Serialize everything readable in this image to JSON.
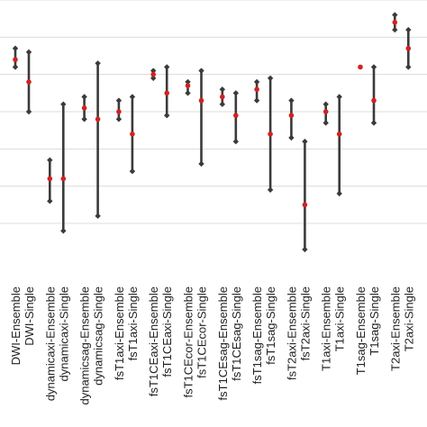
{
  "chart_data": {
    "type": "errorbar",
    "categories": [
      "DWI-Ensemble",
      "DWI-Single",
      "dynamicaxi-Ensemble",
      "dynamicaxi-Single",
      "dynamicsag-Ensemble",
      "dynamicsag-Single",
      "fsT1axi-Ensemble",
      "fsT1axi-Single",
      "fsT1CEaxi-Ensemble",
      "fsT1CEaxi-Single",
      "fsT1CEcor-Ensemble",
      "fsT1CEcor-Single",
      "fsT1CEsag-Ensemble",
      "fsT1CEsag-Single",
      "fsT1sag-Ensemble",
      "fsT1sag-Single",
      "fsT2axi-Ensemble",
      "fsT2axi-Single",
      "T1axi-Ensemble",
      "T1axi-Single",
      "T1sag-Ensemble",
      "T1sag-Single",
      "T2axi-Ensemble",
      "T2axi-Single"
    ],
    "points": [
      {
        "low": 0.82,
        "mid": 0.84,
        "high": 0.87
      },
      {
        "low": 0.7,
        "mid": 0.78,
        "high": 0.86
      },
      {
        "low": 0.46,
        "mid": 0.52,
        "high": 0.57
      },
      {
        "low": 0.38,
        "mid": 0.52,
        "high": 0.72
      },
      {
        "low": 0.68,
        "mid": 0.71,
        "high": 0.74
      },
      {
        "low": 0.42,
        "mid": 0.68,
        "high": 0.83
      },
      {
        "low": 0.68,
        "mid": 0.7,
        "high": 0.73
      },
      {
        "low": 0.54,
        "mid": 0.64,
        "high": 0.74
      },
      {
        "low": 0.79,
        "mid": 0.8,
        "high": 0.81
      },
      {
        "low": 0.69,
        "mid": 0.75,
        "high": 0.82
      },
      {
        "low": 0.75,
        "mid": 0.77,
        "high": 0.78
      },
      {
        "low": 0.56,
        "mid": 0.73,
        "high": 0.81
      },
      {
        "low": 0.72,
        "mid": 0.74,
        "high": 0.76
      },
      {
        "low": 0.62,
        "mid": 0.69,
        "high": 0.75
      },
      {
        "low": 0.73,
        "mid": 0.76,
        "high": 0.78
      },
      {
        "low": 0.49,
        "mid": 0.64,
        "high": 0.79
      },
      {
        "low": 0.63,
        "mid": 0.69,
        "high": 0.73
      },
      {
        "low": 0.33,
        "mid": 0.45,
        "high": 0.62
      },
      {
        "low": 0.67,
        "mid": 0.7,
        "high": 0.72
      },
      {
        "low": 0.48,
        "mid": 0.64,
        "high": 0.74
      },
      {
        "low": 0.82,
        "mid": 0.82,
        "high": 0.82
      },
      {
        "low": 0.67,
        "mid": 0.73,
        "high": 0.82
      },
      {
        "low": 0.92,
        "mid": 0.94,
        "high": 0.96
      },
      {
        "low": 0.82,
        "mid": 0.87,
        "high": 0.92
      }
    ],
    "ylim": [
      0.25,
      1.0
    ],
    "grid": true,
    "colors": {
      "bar": "#3a3a3a",
      "endpoint": "#3a3a3a",
      "mid": "#d62020",
      "grid": "#dcdcdc"
    }
  }
}
